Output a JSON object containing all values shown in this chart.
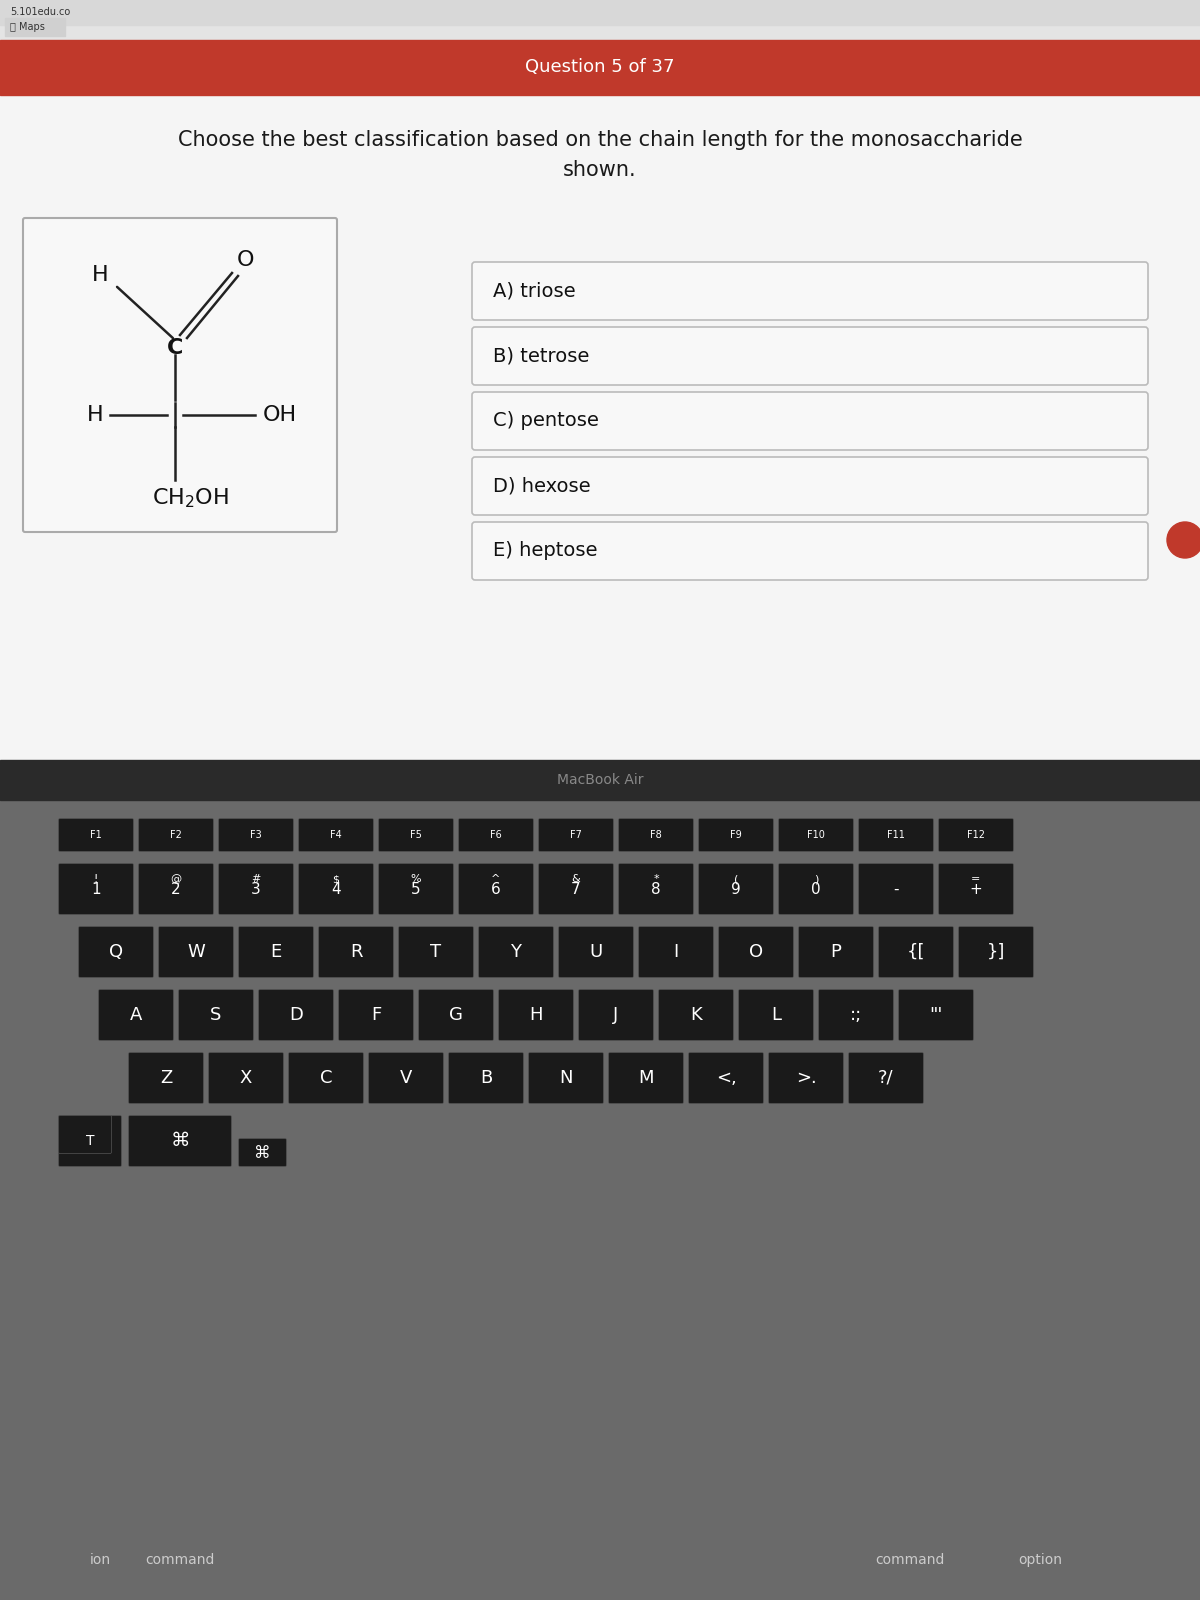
{
  "title": "Question 5 of 37",
  "question": "Choose the best classification based on the chain length for the monosaccharide\nshown.",
  "choices": [
    "A) triose",
    "B) tetrose",
    "C) pentose",
    "D) hexose",
    "E) heptose"
  ],
  "bg_color": "#f0f0f0",
  "screen_bg": "#e8e8e8",
  "header_color": "#c0392b",
  "header_text_color": "#ffffff",
  "browser_bar_color": "#d0d0d0",
  "choice_box_color": "#ffffff",
  "choice_box_border": "#cccccc",
  "molecule_box_color": "#ffffff",
  "molecule_box_border": "#cccccc",
  "keyboard_bg": "#7a7a7a",
  "key_color": "#1a1a1a",
  "key_text_color": "#ffffff",
  "macbook_text": "MacBook Air"
}
